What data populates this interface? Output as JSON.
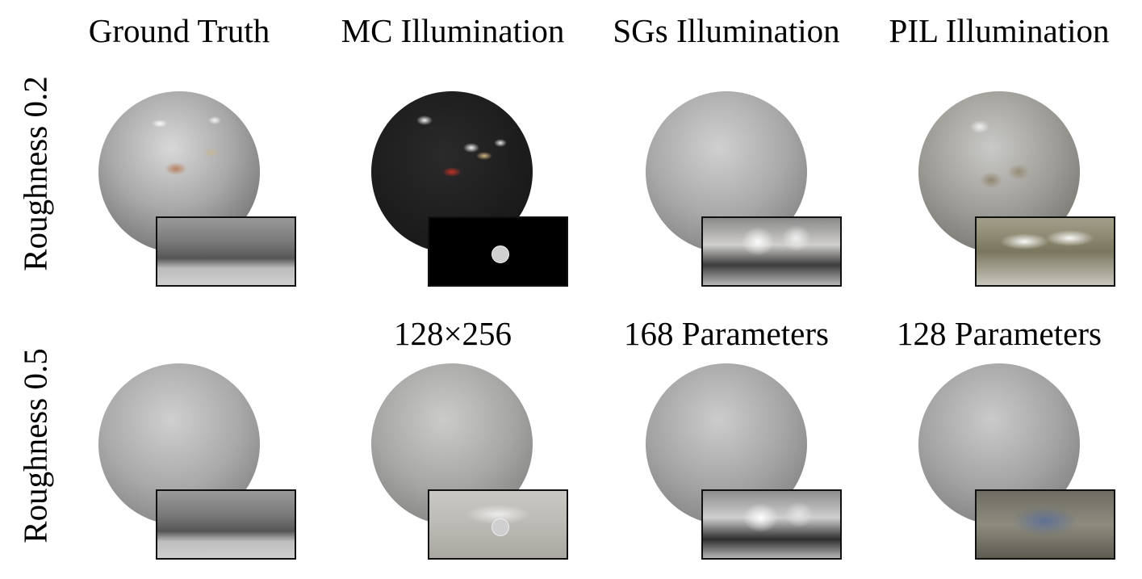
{
  "columns": [
    {
      "title": "Ground Truth",
      "subtitle": ""
    },
    {
      "title": "MC Illumination",
      "subtitle": "128×256"
    },
    {
      "title": "SGs Illumination",
      "subtitle": "168 Parameters"
    },
    {
      "title": "PIL Illumination",
      "subtitle": "128 Parameters"
    }
  ],
  "rows": [
    {
      "label": "Roughness 0.2"
    },
    {
      "label": "Roughness 0.5"
    }
  ],
  "colors": {
    "frame": "#111111",
    "background": "#ffffff"
  }
}
